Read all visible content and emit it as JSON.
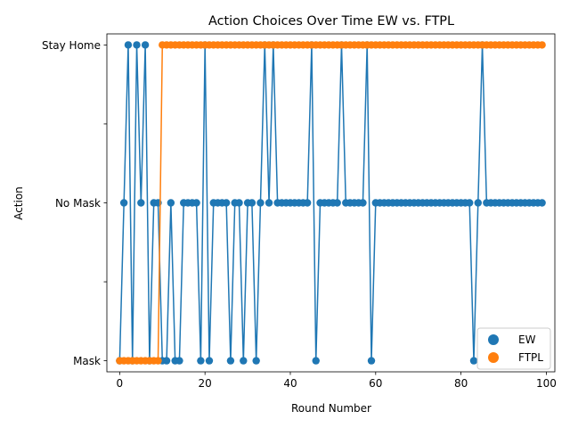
{
  "chart_data": {
    "type": "line",
    "title": "Action Choices Over Time EW vs. FTPL",
    "xlabel": "Round Number",
    "ylabel": "Action",
    "xlim": [
      -3,
      102
    ],
    "ylim": [
      -0.07,
      2.07
    ],
    "x_ticks": [
      0,
      20,
      40,
      60,
      80,
      100
    ],
    "x_tick_labels": [
      "0",
      "20",
      "40",
      "60",
      "80",
      "100"
    ],
    "y_ticks": [
      0,
      1,
      2
    ],
    "y_tick_labels": [
      "Mask",
      "No Mask",
      "Stay Home"
    ],
    "y_minor_ticks": [
      0.5,
      1.5
    ],
    "grid": false,
    "legend_position": "bottom-right",
    "x": [
      0,
      1,
      2,
      3,
      4,
      5,
      6,
      7,
      8,
      9,
      10,
      11,
      12,
      13,
      14,
      15,
      16,
      17,
      18,
      19,
      20,
      21,
      22,
      23,
      24,
      25,
      26,
      27,
      28,
      29,
      30,
      31,
      32,
      33,
      34,
      35,
      36,
      37,
      38,
      39,
      40,
      41,
      42,
      43,
      44,
      45,
      46,
      47,
      48,
      49,
      50,
      51,
      52,
      53,
      54,
      55,
      56,
      57,
      58,
      59,
      60,
      61,
      62,
      63,
      64,
      65,
      66,
      67,
      68,
      69,
      70,
      71,
      72,
      73,
      74,
      75,
      76,
      77,
      78,
      79,
      80,
      81,
      82,
      83,
      84,
      85,
      86,
      87,
      88,
      89,
      90,
      91,
      92,
      93,
      94,
      95,
      96,
      97,
      98,
      99
    ],
    "series": [
      {
        "name": "EW",
        "color": "#1f77b4",
        "values": [
          0,
          1,
          2,
          0,
          2,
          1,
          2,
          0,
          1,
          1,
          0,
          0,
          1,
          0,
          0,
          1,
          1,
          1,
          1,
          0,
          2,
          0,
          1,
          1,
          1,
          1,
          0,
          1,
          1,
          0,
          1,
          1,
          0,
          1,
          2,
          1,
          2,
          1,
          1,
          1,
          1,
          1,
          1,
          1,
          1,
          2,
          0,
          1,
          1,
          1,
          1,
          1,
          2,
          1,
          1,
          1,
          1,
          1,
          2,
          0,
          1,
          1,
          1,
          1,
          1,
          1,
          1,
          1,
          1,
          1,
          1,
          1,
          1,
          1,
          1,
          1,
          1,
          1,
          1,
          1,
          1,
          1,
          1,
          0,
          1,
          2,
          1,
          1,
          1,
          1,
          1,
          1,
          1,
          1,
          1,
          1,
          1,
          1,
          1,
          1
        ]
      },
      {
        "name": "FTPL",
        "color": "#ff7f0e",
        "values": [
          0,
          0,
          0,
          0,
          0,
          0,
          0,
          0,
          0,
          0,
          2,
          2,
          2,
          2,
          2,
          2,
          2,
          2,
          2,
          2,
          2,
          2,
          2,
          2,
          2,
          2,
          2,
          2,
          2,
          2,
          2,
          2,
          2,
          2,
          2,
          2,
          2,
          2,
          2,
          2,
          2,
          2,
          2,
          2,
          2,
          2,
          2,
          2,
          2,
          2,
          2,
          2,
          2,
          2,
          2,
          2,
          2,
          2,
          2,
          2,
          2,
          2,
          2,
          2,
          2,
          2,
          2,
          2,
          2,
          2,
          2,
          2,
          2,
          2,
          2,
          2,
          2,
          2,
          2,
          2,
          2,
          2,
          2,
          2,
          2,
          2,
          2,
          2,
          2,
          2,
          2,
          2,
          2,
          2,
          2,
          2,
          2,
          2,
          2,
          2
        ]
      }
    ]
  }
}
